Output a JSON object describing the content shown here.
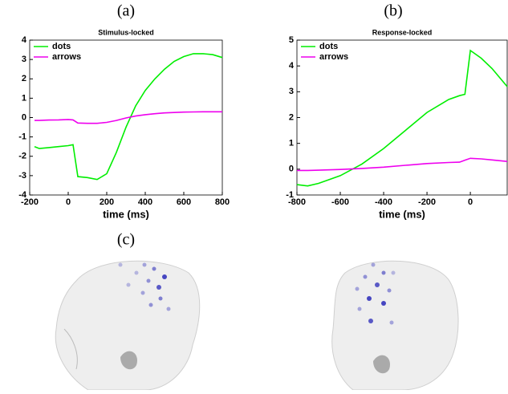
{
  "panel_labels": [
    "(a)",
    "(b)",
    "(c)"
  ],
  "chart_data": [
    {
      "type": "line",
      "title": "Stimulus-locked",
      "xlabel": "time (ms)",
      "x": [
        -175,
        -150,
        -100,
        -50,
        0,
        25,
        50,
        100,
        150,
        200,
        250,
        300,
        350,
        400,
        450,
        500,
        550,
        600,
        650,
        700,
        750,
        800
      ],
      "series": [
        {
          "name": "dots",
          "color": "#00ee00",
          "values": [
            -1.5,
            -1.6,
            -1.55,
            -1.5,
            -1.45,
            -1.4,
            -3.05,
            -3.1,
            -3.2,
            -2.9,
            -1.8,
            -0.5,
            0.6,
            1.4,
            2.0,
            2.5,
            2.9,
            3.15,
            3.3,
            3.3,
            3.25,
            3.1
          ]
        },
        {
          "name": "arrows",
          "color": "#ee00ee",
          "values": [
            -0.15,
            -0.15,
            -0.13,
            -0.12,
            -0.1,
            -0.12,
            -0.28,
            -0.3,
            -0.3,
            -0.25,
            -0.15,
            -0.02,
            0.08,
            0.15,
            0.2,
            0.24,
            0.26,
            0.28,
            0.29,
            0.3,
            0.3,
            0.3
          ]
        }
      ],
      "xlim": [
        -200,
        800
      ],
      "xticks": [
        -200,
        0,
        200,
        400,
        600,
        800
      ],
      "ylim": [
        -4,
        4
      ],
      "yticks": [
        -4,
        -3,
        -2,
        -1,
        0,
        1,
        2,
        3,
        4
      ],
      "legend": "upper left"
    },
    {
      "type": "line",
      "title": "Response-locked",
      "xlabel": "time (ms)",
      "x": [
        -800,
        -750,
        -700,
        -600,
        -500,
        -400,
        -300,
        -200,
        -100,
        -50,
        -25,
        0,
        50,
        100,
        170
      ],
      "series": [
        {
          "name": "dots",
          "color": "#00ee00",
          "values": [
            -0.6,
            -0.65,
            -0.55,
            -0.25,
            0.2,
            0.8,
            1.5,
            2.2,
            2.7,
            2.85,
            2.9,
            4.6,
            4.3,
            3.9,
            3.2
          ]
        },
        {
          "name": "arrows",
          "color": "#ee00ee",
          "values": [
            -0.05,
            -0.05,
            -0.04,
            -0.01,
            0.03,
            0.08,
            0.15,
            0.22,
            0.26,
            0.27,
            0.35,
            0.42,
            0.4,
            0.36,
            0.3
          ]
        }
      ],
      "xlim": [
        -800,
        170
      ],
      "xticks": [
        -800,
        -600,
        -400,
        -200,
        0
      ],
      "ylim": [
        -1,
        5
      ],
      "yticks": [
        -1,
        0,
        1,
        2,
        3,
        4,
        5
      ],
      "legend": "upper left"
    }
  ]
}
